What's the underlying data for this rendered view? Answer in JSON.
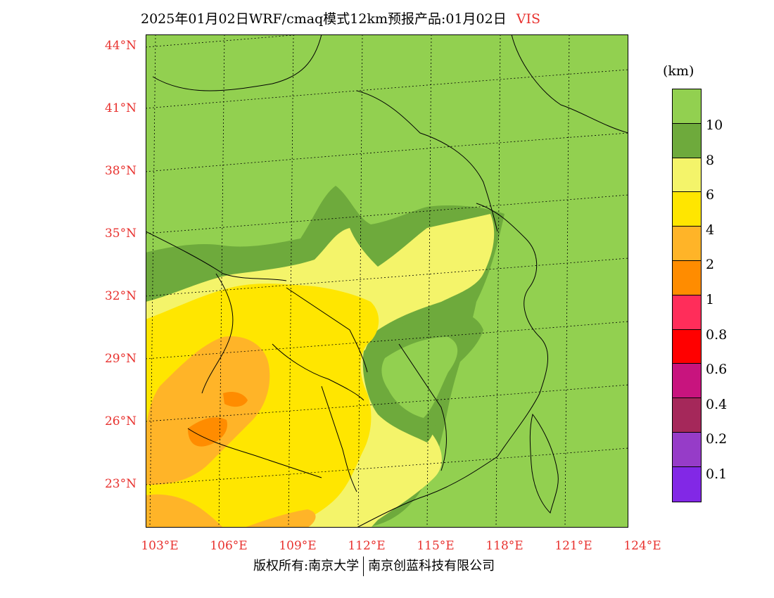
{
  "header": {
    "title": "2025年01月02日WRF/cmaq模式12km预报产品:01月02日",
    "variable": "VIS"
  },
  "axes": {
    "latitude_labels": [
      "44°N",
      "41°N",
      "38°N",
      "35°N",
      "32°N",
      "29°N",
      "26°N",
      "23°N"
    ],
    "longitude_labels": [
      "103°E",
      "106°E",
      "109°E",
      "112°E",
      "115°E",
      "118°E",
      "121°E",
      "124°E"
    ]
  },
  "legend": {
    "unit": "(km)",
    "labels": [
      "10",
      "8",
      "6",
      "4",
      "2",
      "1",
      "0.8",
      "0.6",
      "0.4",
      "0.2",
      "0.1"
    ],
    "colors": [
      "#92d050",
      "#6eaa3c",
      "#f4f46a",
      "#ffe600",
      "#ffb428",
      "#ff8c00",
      "#ff2d5a",
      "#ff0000",
      "#c8147e",
      "#a5285a",
      "#963cc8",
      "#8228e6"
    ]
  },
  "footer": {
    "copyright": "版权所有:南京大学",
    "company": "南京创蓝科技有限公司"
  },
  "map_colors": {
    "ocean_land_10km": "#92d050",
    "band_8km": "#6eaa3c",
    "band_6km": "#f4f46a",
    "band_4km": "#ffe600",
    "band_2km": "#ffb428",
    "band_1km": "#ff8c00"
  }
}
